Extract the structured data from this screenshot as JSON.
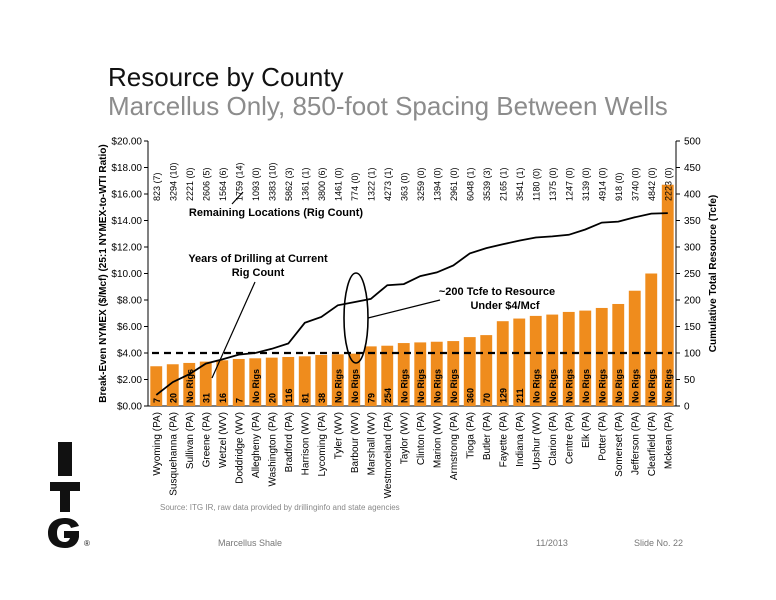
{
  "slide": {
    "title": "Resource by County",
    "subtitle": "Marcellus Only, 850-foot Spacing Between Wells",
    "source": "Source: ITG IR, raw data provided by drillinginfo and state agencies",
    "footer_left": "Marcellus Shale",
    "footer_date": "11/2013",
    "footer_slide": "Slide No. 22",
    "logo_text": "ITG",
    "logo_mark": "®"
  },
  "colors": {
    "bar": "#ef8c1d",
    "line": "#000000",
    "threshold": "#000000",
    "text": "#000000"
  },
  "chart_data": {
    "type": "bar",
    "title": "",
    "xlabel": "",
    "ylabel": "Break-Even NYMEX ($/Mcf) (25:1 NYMEX-to-WTI Ratio)",
    "y2label": "Cumulative Total Resource (Tcfe)",
    "ylim": [
      0,
      20
    ],
    "y2lim": [
      0,
      500
    ],
    "yticks": [
      "$0.00",
      "$2.00",
      "$4.00",
      "$6.00",
      "$8.00",
      "$10.00",
      "$12.00",
      "$14.00",
      "$16.00",
      "$18.00",
      "$20.00"
    ],
    "y2ticks": [
      "0",
      "50",
      "100",
      "150",
      "200",
      "250",
      "300",
      "350",
      "400",
      "450",
      "500"
    ],
    "grid": false,
    "categories": [
      "Wyoming (PA)",
      "Susquehanna (PA)",
      "Sullivan (PA)",
      "Greene (PA)",
      "Wetzel (WV)",
      "Doddridge (WV)",
      "Allegheny (PA)",
      "Washington (PA)",
      "Bradford (PA)",
      "Harrison (WV)",
      "Lycoming (PA)",
      "Tyler (WV)",
      "Barbour (WV)",
      "Marshall (WV)",
      "Westmoreland (PA)",
      "Taylor (WV)",
      "Clinton (PA)",
      "Marion (WV)",
      "Armstrong (PA)",
      "Tioga (PA)",
      "Butler (PA)",
      "Fayette (PA)",
      "Indiana (PA)",
      "Upshur (WV)",
      "Clarion (PA)",
      "Centre (PA)",
      "Elk (PA)",
      "Potter (PA)",
      "Somerset (PA)",
      "Jefferson (PA)",
      "Clearfield (PA)",
      "Mckean (PA)"
    ],
    "series": [
      {
        "name": "",
        "kind": "bar",
        "axis": "left",
        "values": [
          3.0,
          3.15,
          3.25,
          3.35,
          3.45,
          3.55,
          3.6,
          3.65,
          3.7,
          3.75,
          3.85,
          3.9,
          3.95,
          4.5,
          4.55,
          4.75,
          4.8,
          4.85,
          4.9,
          5.2,
          5.35,
          6.4,
          6.6,
          6.8,
          6.9,
          7.1,
          7.2,
          7.4,
          7.7,
          8.7,
          10.0,
          16.7
        ]
      },
      {
        "name": "",
        "kind": "line",
        "axis": "right",
        "values": [
          21,
          45,
          60,
          80,
          88,
          97,
          100,
          108,
          118,
          157,
          168,
          190,
          196,
          202,
          228,
          230,
          245,
          252,
          265,
          288,
          298,
          305,
          312,
          318,
          320,
          323,
          333,
          346,
          348,
          356,
          363,
          364
        ]
      }
    ],
    "bar_labels": [
      "7",
      "20",
      "No Rigs",
      "31",
      "16",
      "7",
      "No Rigs",
      "20",
      "116",
      "81",
      "38",
      "No Rigs",
      "No Rigs",
      "79",
      "254",
      "No Rigs",
      "No Rigs",
      "No Rigs",
      "No Rigs",
      "360",
      "70",
      "129",
      "211",
      "No Rigs",
      "No Rigs",
      "No Rigs",
      "No Rigs",
      "No Rigs",
      "No Rigs",
      "No Rigs",
      "No Rigs",
      "No Rigs"
    ],
    "top_labels": [
      "823 (7)",
      "3294 (10)",
      "2221 (0)",
      "2606 (5)",
      "1564 (6)",
      "1759 (14)",
      "1093 (0)",
      "3383 (10)",
      "5862 (3)",
      "1361 (1)",
      "3800 (6)",
      "1461 (0)",
      "774 (0)",
      "1322 (1)",
      "4273 (1)",
      "363 (0)",
      "3259 (0)",
      "1394 (0)",
      "2961 (0)",
      "6048 (1)",
      "3539 (3)",
      "2165 (1)",
      "3541 (1)",
      "1180 (0)",
      "1375 (0)",
      "1247 (0)",
      "3139 (0)",
      "4914 (0)",
      "918 (0)",
      "3740 (0)",
      "4842 (0)",
      "2223 (0)"
    ],
    "threshold": 4.0,
    "annotations": {
      "remaining": "Remaining Locations (Rig Count)",
      "years_line1": "Years of Drilling at Current",
      "years_line2": "Rig Count",
      "tcfe_line1": "~200 Tcfe to Resource",
      "tcfe_line2": "Under $4/Mcf"
    }
  }
}
